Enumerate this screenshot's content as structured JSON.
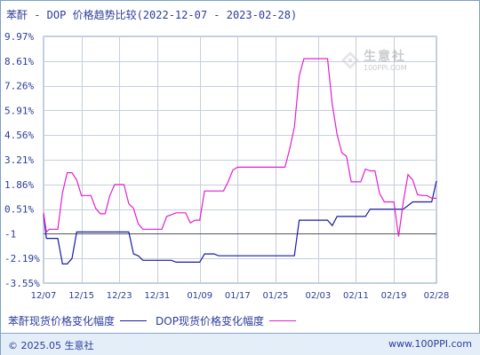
{
  "chart_data": {
    "type": "line",
    "title": "苯酐 - DOP 价格趋势比较(2022-12-07 - 2023-02-28)",
    "y_ticks": [
      "9.97%",
      "8.61%",
      "7.26%",
      "5.91%",
      "4.56%",
      "3.21%",
      "1.86%",
      "0.51%",
      "-1",
      "-2.19%",
      "-3.55%"
    ],
    "y_tick_values": [
      9.97,
      8.61,
      7.26,
      5.91,
      4.56,
      3.21,
      1.86,
      0.51,
      -0.84,
      -2.19,
      -3.55
    ],
    "ylim": [
      -3.55,
      9.97
    ],
    "x_ticks": [
      "12/07",
      "12/15",
      "12/23",
      "12/31",
      "01/09",
      "01/17",
      "01/25",
      "02/03",
      "02/11",
      "02/19",
      "02/28"
    ],
    "x_tick_days": [
      0,
      8,
      16,
      24,
      33,
      41,
      49,
      58,
      66,
      74,
      83
    ],
    "grid": true,
    "legend_position": "bottom",
    "series": [
      {
        "name": "苯酐现货价格变化幅度",
        "color": "#1a1aa6",
        "points": [
          [
            0,
            0.2
          ],
          [
            0.6,
            -1.1
          ],
          [
            1.2,
            -1.1
          ],
          [
            2,
            -1.1
          ],
          [
            3,
            -1.1
          ],
          [
            4,
            -2.5
          ],
          [
            5,
            -2.5
          ],
          [
            6,
            -2.2
          ],
          [
            7,
            -0.75
          ],
          [
            8,
            -0.75
          ],
          [
            9,
            -0.75
          ],
          [
            10,
            -0.75
          ],
          [
            11,
            -0.75
          ],
          [
            12,
            -0.75
          ],
          [
            13,
            -0.75
          ],
          [
            14,
            -0.75
          ],
          [
            15,
            -0.75
          ],
          [
            16,
            -0.75
          ],
          [
            17,
            -0.75
          ],
          [
            18,
            -0.75
          ],
          [
            19,
            -1.95
          ],
          [
            20,
            -2.05
          ],
          [
            21,
            -2.3
          ],
          [
            22,
            -2.3
          ],
          [
            23,
            -2.3
          ],
          [
            24,
            -2.3
          ],
          [
            25,
            -2.3
          ],
          [
            26,
            -2.3
          ],
          [
            27,
            -2.3
          ],
          [
            28,
            -2.4
          ],
          [
            29,
            -2.4
          ],
          [
            30,
            -2.4
          ],
          [
            31,
            -2.4
          ],
          [
            32,
            -2.4
          ],
          [
            33,
            -2.4
          ],
          [
            34,
            -1.95
          ],
          [
            35,
            -1.95
          ],
          [
            36,
            -1.95
          ],
          [
            37,
            -2.05
          ],
          [
            38,
            -2.05
          ],
          [
            39,
            -2.05
          ],
          [
            40,
            -2.05
          ],
          [
            41,
            -2.05
          ],
          [
            42,
            -2.05
          ],
          [
            43,
            -2.05
          ],
          [
            44,
            -2.05
          ],
          [
            45,
            -2.05
          ],
          [
            46,
            -2.05
          ],
          [
            47,
            -2.05
          ],
          [
            48,
            -2.05
          ],
          [
            49,
            -2.05
          ],
          [
            50,
            -2.05
          ],
          [
            51,
            -2.05
          ],
          [
            52,
            -2.05
          ],
          [
            53,
            -2.05
          ],
          [
            54,
            -0.1
          ],
          [
            55,
            -0.1
          ],
          [
            56,
            -0.1
          ],
          [
            57,
            -0.1
          ],
          [
            58,
            -0.1
          ],
          [
            59,
            -0.1
          ],
          [
            60,
            -0.1
          ],
          [
            61,
            -0.4
          ],
          [
            62,
            0.1
          ],
          [
            63,
            0.1
          ],
          [
            64,
            0.1
          ],
          [
            65,
            0.1
          ],
          [
            66,
            0.1
          ],
          [
            67,
            0.1
          ],
          [
            68,
            0.1
          ],
          [
            69,
            0.5
          ],
          [
            70,
            0.5
          ],
          [
            71,
            0.5
          ],
          [
            72,
            0.5
          ],
          [
            73,
            0.5
          ],
          [
            74,
            0.5
          ],
          [
            75,
            0.5
          ],
          [
            76,
            0.5
          ],
          [
            77,
            0.7
          ],
          [
            78,
            0.9
          ],
          [
            79,
            0.9
          ],
          [
            80,
            0.9
          ],
          [
            81,
            0.9
          ],
          [
            82,
            0.9
          ],
          [
            83,
            2.05
          ]
        ]
      },
      {
        "name": "DOP现货价格变化幅度",
        "color": "#e020d0",
        "points": [
          [
            0,
            0.3
          ],
          [
            0.6,
            -0.75
          ],
          [
            1.2,
            -0.6
          ],
          [
            2,
            -0.6
          ],
          [
            3,
            -0.6
          ],
          [
            4,
            1.4
          ],
          [
            5,
            2.5
          ],
          [
            6,
            2.5
          ],
          [
            7,
            2.1
          ],
          [
            8,
            1.25
          ],
          [
            9,
            1.25
          ],
          [
            10,
            1.25
          ],
          [
            11,
            0.55
          ],
          [
            12,
            0.25
          ],
          [
            13,
            0.25
          ],
          [
            14,
            1.25
          ],
          [
            15,
            1.85
          ],
          [
            16,
            1.85
          ],
          [
            17,
            1.85
          ],
          [
            18,
            0.8
          ],
          [
            19,
            0.55
          ],
          [
            20,
            -0.3
          ],
          [
            21,
            -0.6
          ],
          [
            22,
            -0.6
          ],
          [
            23,
            -0.6
          ],
          [
            24,
            -0.6
          ],
          [
            25,
            -0.6
          ],
          [
            26,
            0.1
          ],
          [
            27,
            0.2
          ],
          [
            28,
            0.3
          ],
          [
            29,
            0.3
          ],
          [
            30,
            0.3
          ],
          [
            31,
            -0.25
          ],
          [
            32,
            -0.1
          ],
          [
            33,
            -0.1
          ],
          [
            34,
            1.5
          ],
          [
            35,
            1.5
          ],
          [
            36,
            1.5
          ],
          [
            37,
            1.5
          ],
          [
            38,
            1.5
          ],
          [
            39,
            2.0
          ],
          [
            40,
            2.65
          ],
          [
            41,
            2.8
          ],
          [
            42,
            2.8
          ],
          [
            43,
            2.8
          ],
          [
            44,
            2.8
          ],
          [
            45,
            2.8
          ],
          [
            46,
            2.8
          ],
          [
            47,
            2.8
          ],
          [
            48,
            2.8
          ],
          [
            49,
            2.8
          ],
          [
            50,
            2.8
          ],
          [
            51,
            2.8
          ],
          [
            52,
            3.8
          ],
          [
            53,
            5.0
          ],
          [
            54,
            7.8
          ],
          [
            55,
            8.75
          ],
          [
            56,
            8.75
          ],
          [
            57,
            8.75
          ],
          [
            58,
            8.75
          ],
          [
            59,
            8.75
          ],
          [
            60,
            8.75
          ],
          [
            61,
            6.25
          ],
          [
            62,
            4.6
          ],
          [
            63,
            3.6
          ],
          [
            64,
            3.4
          ],
          [
            65,
            2.0
          ],
          [
            66,
            2.0
          ],
          [
            67,
            2.0
          ],
          [
            68,
            2.7
          ],
          [
            69,
            2.6
          ],
          [
            70,
            2.6
          ],
          [
            71,
            1.35
          ],
          [
            72,
            0.9
          ],
          [
            73,
            0.9
          ],
          [
            74,
            0.9
          ],
          [
            75,
            -1.0
          ],
          [
            76,
            0.9
          ],
          [
            77,
            2.4
          ],
          [
            78,
            2.1
          ],
          [
            79,
            1.3
          ],
          [
            80,
            1.25
          ],
          [
            81,
            1.25
          ],
          [
            82,
            1.1
          ],
          [
            83,
            1.1
          ]
        ]
      }
    ]
  },
  "watermark": {
    "name": "生意社",
    "url": "100PPI.COM"
  },
  "footer": {
    "copyright": "© 2025.05 生意社",
    "site": "www.100PPI.com"
  }
}
